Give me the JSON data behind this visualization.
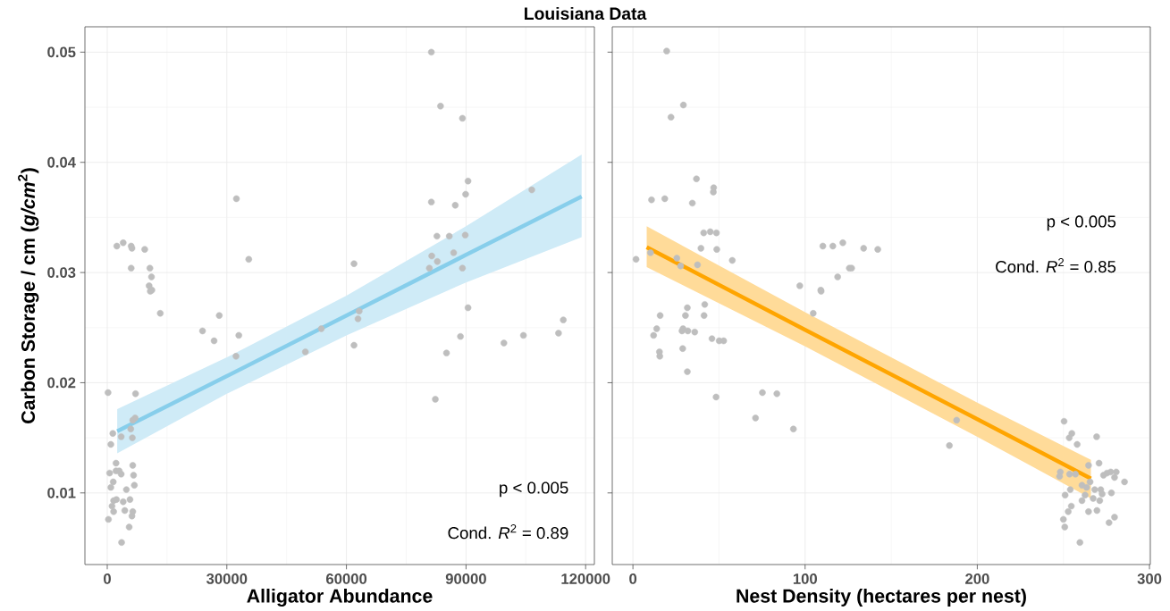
{
  "chart_data": [
    {
      "type": "scatter",
      "title": "Louisiana Data",
      "xlabel": "Alligator Abundance",
      "ylabel": "Carbon Storage / cm (*g/cm*$^{2}$)",
      "xlim": [
        -5600,
        122200
      ],
      "ylim": [
        0.0035,
        0.0523
      ],
      "xticks": [
        0,
        30000,
        60000,
        90000,
        120000
      ],
      "yticks": [
        0.01,
        0.02,
        0.03,
        0.04,
        0.05
      ],
      "grid": true,
      "annotations": [
        "p < 0.005",
        "Cond. *R*$^{2}$ = 0.89"
      ],
      "series": [
        {
          "marker": "circle",
          "color": "#bebebe",
          "x": [
            32400,
            2400,
            4000,
            6000,
            6200,
            9400,
            6000,
            10700,
            11100,
            10500,
            11200,
            10800,
            35500,
            13300,
            28100,
            23900,
            33000,
            26800,
            32300,
            49700,
            53700,
            200,
            7100,
            7000,
            6400,
            5900,
            3500,
            6300,
            1400,
            900,
            2200,
            6400,
            600,
            2200,
            3000,
            3500,
            6600,
            1500,
            6800,
            900,
            4800,
            1600,
            2300,
            4000,
            5700,
            1200,
            1600,
            4400,
            6400,
            6200,
            300,
            5500,
            3600,
            81300,
            83600,
            89100,
            90500,
            106500,
            89900,
            81300,
            87300,
            82700,
            85800,
            89800,
            61900,
            81400,
            86900,
            82800,
            80800,
            89100,
            63200,
            62900,
            90500,
            61900,
            88600,
            99500,
            104400,
            113200,
            114400,
            85100,
            82300
          ],
          "values": [
            0.0367,
            0.0324,
            0.0327,
            0.0324,
            0.0322,
            0.0321,
            0.0304,
            0.0304,
            0.0296,
            0.0288,
            0.0284,
            0.0283,
            0.0312,
            0.0263,
            0.0261,
            0.0247,
            0.0243,
            0.0238,
            0.0224,
            0.0228,
            0.0249,
            0.0191,
            0.019,
            0.0168,
            0.0166,
            0.0158,
            0.0151,
            0.015,
            0.0154,
            0.0144,
            0.0127,
            0.0125,
            0.0118,
            0.012,
            0.012,
            0.0117,
            0.0116,
            0.011,
            0.0107,
            0.0105,
            0.0103,
            0.0093,
            0.0094,
            0.0092,
            0.0094,
            0.0088,
            0.0083,
            0.0084,
            0.0083,
            0.0079,
            0.0076,
            0.0069,
            0.0055,
            0.05,
            0.0451,
            0.044,
            0.0383,
            0.0375,
            0.0371,
            0.0364,
            0.0361,
            0.0333,
            0.0333,
            0.0334,
            0.0308,
            0.0315,
            0.0318,
            0.031,
            0.0304,
            0.0304,
            0.0265,
            0.0258,
            0.0268,
            0.0234,
            0.0242,
            0.0236,
            0.0243,
            0.0245,
            0.0257,
            0.0227,
            0.0185
          ]
        },
        {
          "type": "line",
          "marker": "none",
          "color": "#87ceeb",
          "x": [
            2500,
            30000,
            60000,
            90000,
            119000
          ],
          "values": [
            0.0156,
            0.0206,
            0.0261,
            0.0316,
            0.0369
          ],
          "lower": [
            0.0136,
            0.019,
            0.0243,
            0.0291,
            0.0332
          ],
          "upper": [
            0.0176,
            0.0223,
            0.0279,
            0.0342,
            0.0407
          ]
        }
      ]
    },
    {
      "type": "scatter",
      "xlabel": "Nest Density (hectares per nest)",
      "xlim": [
        -12,
        300.5
      ],
      "ylim": [
        0.0035,
        0.0523
      ],
      "xticks": [
        0,
        100,
        200,
        300
      ],
      "yticks": [
        0.01,
        0.02,
        0.03,
        0.04,
        0.05
      ],
      "grid": true,
      "tick_labels": "x",
      "annotations": [
        "p < 0.005",
        "Cond. *R*$^{2}$ = 0.85"
      ],
      "series": [
        {
          "marker": "circle",
          "color": "#bebebe",
          "x": [
            19.6,
            29.3,
            22.1,
            36.9,
            46.9,
            46.7,
            10.8,
            18.5,
            34.5,
            41.1,
            44.9,
            48.5,
            39.5,
            48.7,
            1.8,
            10.2,
            25.5,
            27.7,
            37.5,
            57.7,
            110.3,
            116.1,
            121.9,
            134,
            142.2,
            125.7,
            127,
            118.9,
            109.1,
            109.3,
            96.9,
            104.7,
            31.6,
            15.8,
            30.5,
            41.3,
            41.7,
            13.8,
            12,
            29.1,
            28.5,
            31.9,
            35.9,
            45.9,
            50.1,
            52.7,
            15.4,
            15.6,
            28.9,
            31.6,
            48.3,
            75.2,
            83.6,
            71.2,
            93.2,
            188,
            183.8,
            250.4,
            254.9,
            253.4,
            269.3,
            258,
            264.6,
            270.7,
            248.2,
            247.8,
            253.6,
            257,
            273.3,
            275.3,
            277.5,
            280.7,
            279.7,
            285.5,
            260.8,
            263.5,
            265.5,
            254,
            251,
            268.2,
            271.7,
            272.5,
            277.9,
            262.6,
            260.8,
            267.3,
            271.1,
            254.6,
            252.8,
            264.6,
            269.5,
            279.7,
            276.5,
            250,
            250.8,
            259.6
          ],
          "values": [
            0.0501,
            0.0452,
            0.0441,
            0.0385,
            0.0377,
            0.0373,
            0.0366,
            0.0367,
            0.0363,
            0.0336,
            0.0337,
            0.0336,
            0.0322,
            0.0321,
            0.0312,
            0.0318,
            0.0313,
            0.0306,
            0.0307,
            0.0311,
            0.0324,
            0.0324,
            0.0327,
            0.0322,
            0.0321,
            0.0304,
            0.0304,
            0.0296,
            0.0284,
            0.0283,
            0.0288,
            0.0263,
            0.0268,
            0.0261,
            0.0261,
            0.0261,
            0.0271,
            0.0249,
            0.0243,
            0.0249,
            0.0247,
            0.0247,
            0.0246,
            0.024,
            0.0238,
            0.0238,
            0.0228,
            0.0224,
            0.0231,
            0.021,
            0.0187,
            0.0191,
            0.019,
            0.0168,
            0.0158,
            0.0166,
            0.0143,
            0.0165,
            0.0154,
            0.015,
            0.0151,
            0.0144,
            0.0125,
            0.0127,
            0.0119,
            0.0115,
            0.0117,
            0.0117,
            0.0116,
            0.0118,
            0.0119,
            0.0119,
            0.0114,
            0.011,
            0.0107,
            0.0105,
            0.011,
            0.0103,
            0.0098,
            0.0103,
            0.0103,
            0.0099,
            0.01,
            0.0098,
            0.0093,
            0.0095,
            0.0093,
            0.0088,
            0.0083,
            0.0083,
            0.0084,
            0.0078,
            0.0073,
            0.0076,
            0.0069,
            0.0055
          ]
        },
        {
          "type": "line",
          "marker": "none",
          "color": "#ffa500",
          "x": [
            8,
            100,
            200,
            266
          ],
          "values": [
            0.0323,
            0.0248,
            0.0167,
            0.0113
          ],
          "lower": [
            0.0305,
            0.0233,
            0.0151,
            0.0095
          ],
          "upper": [
            0.0342,
            0.0264,
            0.0182,
            0.013
          ]
        }
      ]
    }
  ]
}
